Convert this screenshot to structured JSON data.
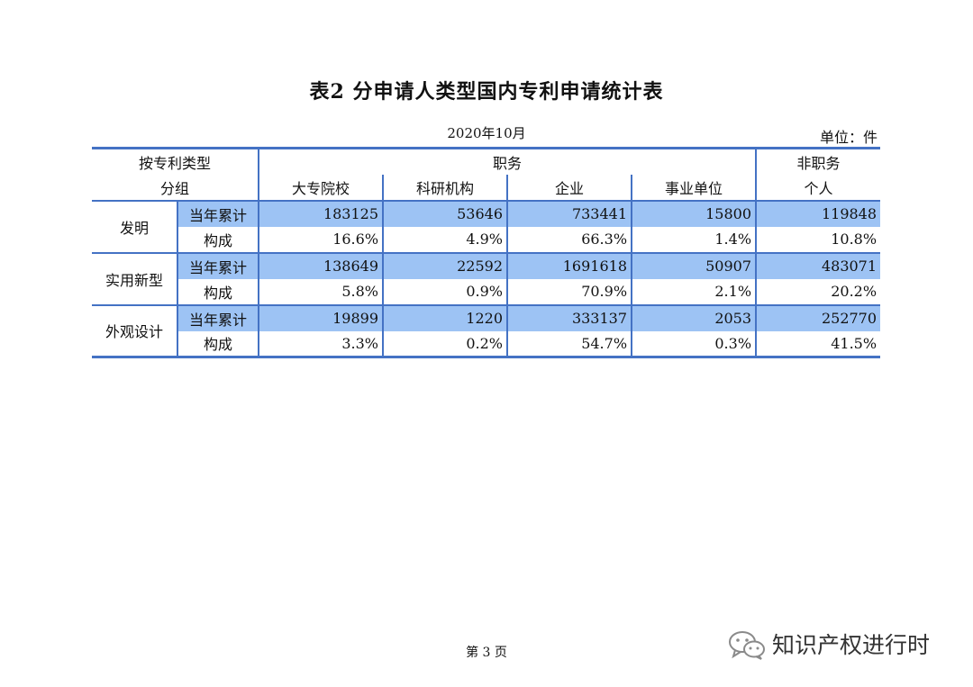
{
  "title": "表2  分申请人类型国内专利申请统计表",
  "date": "2020年10月",
  "unit": "单位：件",
  "header": {
    "group_label_1": "按专利类型",
    "group_label_2": "分组",
    "zhiwu": "职务",
    "feizhiwu": "非职务",
    "columns": [
      "大专院校",
      "科研机构",
      "企业",
      "事业单位",
      "个人"
    ]
  },
  "groups": [
    {
      "name": "发明",
      "rows": [
        {
          "label": "当年累计",
          "values": [
            "183125",
            "53646",
            "733441",
            "15800",
            "119848"
          ]
        },
        {
          "label": "构成",
          "values": [
            "16.6%",
            "4.9%",
            "66.3%",
            "1.4%",
            "10.8%"
          ]
        }
      ]
    },
    {
      "name": "实用新型",
      "rows": [
        {
          "label": "当年累计",
          "values": [
            "138649",
            "22592",
            "1691618",
            "50907",
            "483071"
          ]
        },
        {
          "label": "构成",
          "values": [
            "5.8%",
            "0.9%",
            "70.9%",
            "2.1%",
            "20.2%"
          ]
        }
      ]
    },
    {
      "name": "外观设计",
      "rows": [
        {
          "label": "当年累计",
          "values": [
            "19899",
            "1220",
            "333137",
            "2053",
            "252770"
          ]
        },
        {
          "label": "构成",
          "values": [
            "3.3%",
            "0.2%",
            "54.7%",
            "0.3%",
            "41.5%"
          ]
        }
      ]
    }
  ],
  "footer": {
    "page": "第 3 页",
    "brand": "知识产权进行时",
    "brand_icon": "wechat-icon"
  },
  "colors": {
    "accent_border": "#4472c4",
    "highlight_row": "#9dc3f4"
  }
}
